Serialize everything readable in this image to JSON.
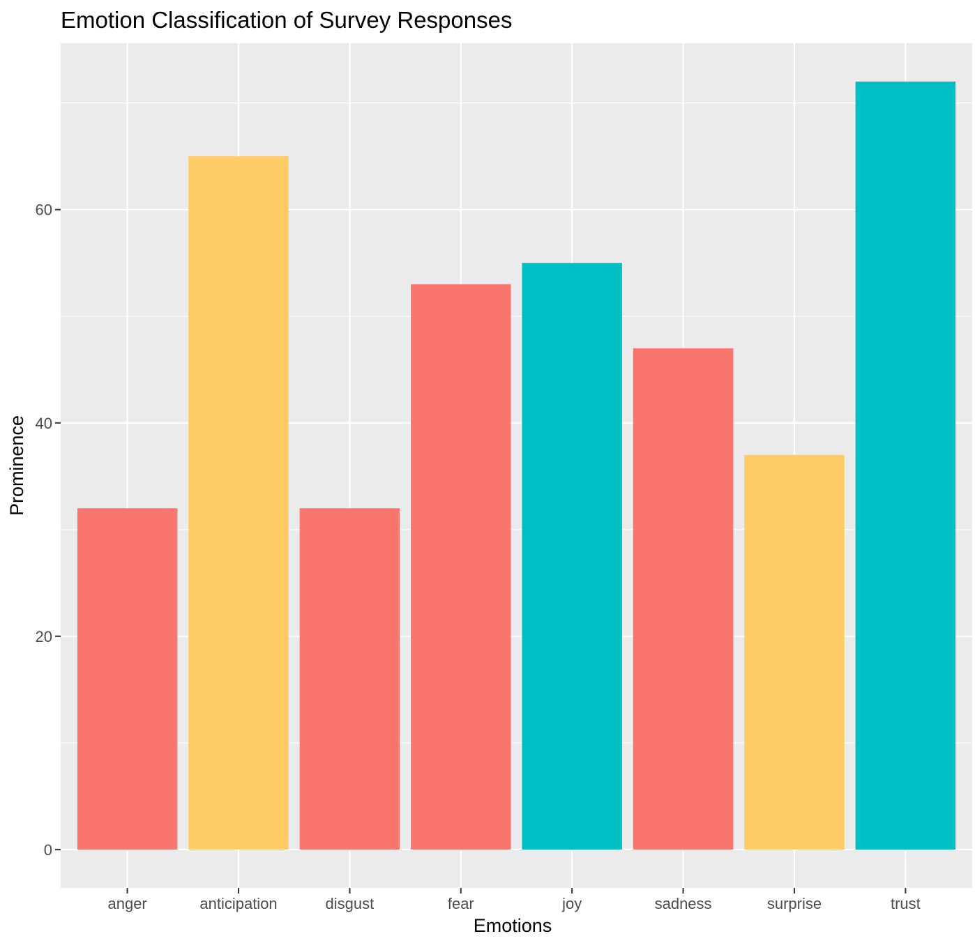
{
  "chart_data": {
    "type": "bar",
    "title": "Emotion Classification of Survey Responses",
    "xlabel": "Emotions",
    "ylabel": "Prominence",
    "categories": [
      "anger",
      "anticipation",
      "disgust",
      "fear",
      "joy",
      "sadness",
      "surprise",
      "trust"
    ],
    "values": [
      32,
      65,
      32,
      53,
      55,
      47,
      37,
      72
    ],
    "bar_colors": [
      "#F8766D",
      "#FFCB66",
      "#F8766D",
      "#F8766D",
      "#00BFC4",
      "#F8766D",
      "#FFCB66",
      "#00BFC4"
    ],
    "ylim": [
      -3.6,
      75.6
    ],
    "yticks": [
      0,
      20,
      40,
      60
    ],
    "ytick_labels": [
      "0",
      "20",
      "40",
      "60"
    ],
    "grid": true,
    "legend": "none",
    "panel_background": "#EBEBEB",
    "grid_color": "#FFFFFF"
  }
}
